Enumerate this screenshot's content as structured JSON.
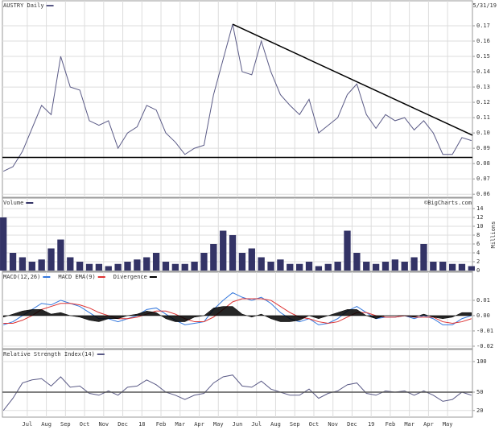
{
  "chart_data": [
    {
      "type": "line",
      "subtitle": "5/31/19",
      "x": [
        -0.25,
        0.25,
        0.75,
        1.25,
        1.75,
        2.25,
        2.75,
        3.25,
        3.75,
        4.25,
        4.75,
        5.25,
        5.75,
        6.25,
        6.75,
        7.25,
        7.75,
        8.25,
        8.75,
        9.25,
        9.75,
        10.25,
        10.75,
        11.25,
        11.75,
        12.25,
        12.75,
        13.25,
        13.75,
        14.25,
        14.75,
        15.25,
        15.75,
        16.25,
        16.75,
        17.25,
        17.75,
        18.25,
        18.75,
        19.25,
        19.75,
        20.25,
        20.75,
        21.25,
        21.75,
        22.25,
        22.75,
        23.25,
        23.75,
        24.25
      ],
      "series": [
        {
          "name": "AUSTRY Daily",
          "color": "#5a5a86",
          "values": [
            0.075,
            0.078,
            0.088,
            0.103,
            0.118,
            0.112,
            0.15,
            0.13,
            0.128,
            0.108,
            0.105,
            0.108,
            0.09,
            0.1,
            0.104,
            0.118,
            0.115,
            0.1,
            0.094,
            0.086,
            0.09,
            0.092,
            0.125,
            0.148,
            0.171,
            0.14,
            0.138,
            0.16,
            0.14,
            0.125,
            0.118,
            0.112,
            0.122,
            0.1,
            0.105,
            0.11,
            0.125,
            0.132,
            0.112,
            0.103,
            0.112,
            0.108,
            0.11,
            0.102,
            0.108,
            0.1,
            0.086,
            0.086,
            0.097,
            0.095
          ]
        }
      ],
      "reference_lines": [
        {
          "x": [
            11.75,
            24.3
          ],
          "values": [
            0.171,
            0.0985
          ],
          "color": "#000000"
        },
        {
          "x": [
            -0.3,
            24.3
          ],
          "values": [
            0.084,
            0.084
          ],
          "color": "#000000"
        }
      ],
      "xlim": [
        -0.3,
        24.3
      ],
      "ylim": [
        0.058,
        0.1863
      ],
      "yticks": [
        0.06,
        0.07,
        0.08,
        0.09,
        {
          "value": 0.1,
          "label": "0.10"
        },
        0.11,
        0.12,
        0.13,
        0.14,
        0.15,
        0.16,
        0.17
      ],
      "grid": true
    },
    {
      "type": "bar",
      "credit": "©BigCharts.com",
      "ylabel": "Millions",
      "x": [
        -0.25,
        0.25,
        0.75,
        1.25,
        1.75,
        2.25,
        2.75,
        3.25,
        3.75,
        4.25,
        4.75,
        5.25,
        5.75,
        6.25,
        6.75,
        7.25,
        7.75,
        8.25,
        8.75,
        9.25,
        9.75,
        10.25,
        10.75,
        11.25,
        11.75,
        12.25,
        12.75,
        13.25,
        13.75,
        14.25,
        14.75,
        15.25,
        15.75,
        16.25,
        16.75,
        17.25,
        17.75,
        18.25,
        18.75,
        19.25,
        19.75,
        20.25,
        20.75,
        21.25,
        21.75,
        22.25,
        22.75,
        23.25,
        23.75,
        24.25
      ],
      "series": [
        {
          "name": "Volume",
          "color": "#333366",
          "values": [
            12,
            4,
            3,
            2,
            2.5,
            5,
            7,
            3,
            2,
            1.5,
            1.5,
            1,
            1.5,
            2,
            2.5,
            3,
            4,
            2,
            1.5,
            1.5,
            2,
            4,
            6,
            9,
            8,
            4,
            5,
            3,
            2,
            2.5,
            1.5,
            1.5,
            2,
            1,
            1.5,
            2,
            9,
            4,
            2,
            1.5,
            2,
            2.5,
            2,
            3,
            6,
            2,
            2,
            1.5,
            1.5,
            1
          ]
        }
      ],
      "xlim": [
        -0.3,
        24.3
      ],
      "ylim": [
        -0.18,
        16.36
      ],
      "yticks": [
        0,
        2,
        4,
        6,
        8,
        10,
        12,
        14
      ],
      "grid": true
    },
    {
      "type": "line",
      "x": [
        -0.25,
        0.25,
        0.75,
        1.25,
        1.75,
        2.25,
        2.75,
        3.25,
        3.75,
        4.25,
        4.75,
        5.25,
        5.75,
        6.25,
        6.75,
        7.25,
        7.75,
        8.25,
        8.75,
        9.25,
        9.75,
        10.25,
        10.75,
        11.25,
        11.75,
        12.25,
        12.75,
        13.25,
        13.75,
        14.25,
        14.75,
        15.25,
        15.75,
        16.25,
        16.75,
        17.25,
        17.75,
        18.25,
        18.75,
        19.25,
        19.75,
        20.25,
        20.75,
        21.25,
        21.75,
        22.25,
        22.75,
        23.25,
        23.75,
        24.25
      ],
      "series": [
        {
          "name": "MACD(12,26)",
          "color": "#3377dd",
          "values": [
            -0.006,
            -0.004,
            0.0,
            0.004,
            0.008,
            0.007,
            0.01,
            0.008,
            0.006,
            0.002,
            -0.002,
            -0.002,
            -0.004,
            -0.002,
            0.0,
            0.004,
            0.005,
            0.001,
            -0.003,
            -0.006,
            -0.005,
            -0.004,
            0.004,
            0.01,
            0.015,
            0.012,
            0.01,
            0.012,
            0.008,
            0.002,
            -0.002,
            -0.004,
            -0.002,
            -0.006,
            -0.005,
            -0.002,
            0.003,
            0.006,
            0.002,
            -0.002,
            -0.001,
            -0.001,
            0.0,
            -0.002,
            0.0,
            -0.002,
            -0.006,
            -0.006,
            -0.002,
            0.0
          ]
        },
        {
          "name": "MACD EMA(9)",
          "color": "#dd3333",
          "values": [
            -0.005,
            -0.005,
            -0.003,
            0.0,
            0.004,
            0.006,
            0.008,
            0.008,
            0.007,
            0.005,
            0.002,
            0.0,
            -0.002,
            -0.002,
            -0.001,
            0.001,
            0.003,
            0.003,
            0.001,
            -0.002,
            -0.004,
            -0.004,
            -0.001,
            0.004,
            0.009,
            0.011,
            0.011,
            0.011,
            0.01,
            0.006,
            0.002,
            -0.001,
            -0.002,
            -0.004,
            -0.005,
            -0.004,
            -0.001,
            0.002,
            0.002,
            0.0,
            -0.001,
            -0.001,
            0.0,
            -0.001,
            -0.001,
            -0.001,
            -0.004,
            -0.005,
            -0.004,
            -0.002
          ]
        },
        {
          "name": "Divergence",
          "color": "#000000",
          "fill": true,
          "values": [
            -0.001,
            0.001,
            0.003,
            0.004,
            0.004,
            0.001,
            0.002,
            0.0,
            -0.001,
            -0.003,
            -0.004,
            -0.002,
            -0.002,
            0.0,
            0.001,
            0.003,
            0.002,
            -0.002,
            -0.004,
            -0.004,
            -0.001,
            0.0,
            0.005,
            0.006,
            0.006,
            0.001,
            -0.001,
            0.001,
            -0.002,
            -0.004,
            -0.004,
            -0.003,
            0.0,
            -0.002,
            0.0,
            0.002,
            0.004,
            0.004,
            0.0,
            -0.002,
            0.0,
            0.0,
            0.0,
            -0.001,
            0.001,
            -0.001,
            -0.002,
            -0.001,
            0.002,
            0.002
          ]
        }
      ],
      "xlim": [
        -0.3,
        24.3
      ],
      "ylim": [
        -0.0216,
        0.0284
      ],
      "yticks": [
        0.01,
        {
          "value": 0,
          "label": "0.00"
        },
        -0.01,
        -0.02
      ],
      "grid": true
    },
    {
      "type": "line",
      "x": [
        -0.25,
        0.25,
        0.75,
        1.25,
        1.75,
        2.25,
        2.75,
        3.25,
        3.75,
        4.25,
        4.75,
        5.25,
        5.75,
        6.25,
        6.75,
        7.25,
        7.75,
        8.25,
        8.75,
        9.25,
        9.75,
        10.25,
        10.75,
        11.25,
        11.75,
        12.25,
        12.75,
        13.25,
        13.75,
        14.25,
        14.75,
        15.25,
        15.75,
        16.25,
        16.75,
        17.25,
        17.75,
        18.25,
        18.75,
        19.25,
        19.75,
        20.25,
        20.75,
        21.25,
        21.75,
        22.25,
        22.75,
        23.25,
        23.75,
        24.25
      ],
      "series": [
        {
          "name": "Relative Strength Index(14)",
          "color": "#5a5a86",
          "values": [
            20,
            40,
            65,
            70,
            72,
            60,
            75,
            58,
            60,
            48,
            45,
            52,
            45,
            58,
            60,
            70,
            62,
            50,
            45,
            38,
            45,
            48,
            65,
            75,
            78,
            60,
            58,
            68,
            55,
            50,
            45,
            45,
            55,
            40,
            48,
            52,
            62,
            65,
            48,
            45,
            52,
            50,
            52,
            45,
            52,
            45,
            35,
            38,
            50,
            45
          ]
        }
      ],
      "reference_lines": [
        {
          "x": [
            -0.3,
            24.3
          ],
          "values": [
            50,
            50
          ],
          "color": "#555555"
        }
      ],
      "xlim": [
        -0.3,
        24.3
      ],
      "ylim": [
        9.2,
        119.7
      ],
      "yticks": [
        100,
        50,
        20
      ],
      "xticks": [
        {
          "value": 1,
          "label": "Jul"
        },
        {
          "value": 2,
          "label": "Aug"
        },
        {
          "value": 3,
          "label": "Sep"
        },
        {
          "value": 4,
          "label": "Oct"
        },
        {
          "value": 5,
          "label": "Nov"
        },
        {
          "value": 6,
          "label": "Dec"
        },
        {
          "value": 7,
          "label": "18"
        },
        {
          "value": 8,
          "label": "Feb"
        },
        {
          "value": 9,
          "label": "Mar"
        },
        {
          "value": 10,
          "label": "Apr"
        },
        {
          "value": 11,
          "label": "May"
        },
        {
          "value": 12,
          "label": "Jun"
        },
        {
          "value": 13,
          "label": "Jul"
        },
        {
          "value": 14,
          "label": "Aug"
        },
        {
          "value": 15,
          "label": "Sep"
        },
        {
          "value": 16,
          "label": "Oct"
        },
        {
          "value": 17,
          "label": "Nov"
        },
        {
          "value": 18,
          "label": "Dec"
        },
        {
          "value": 19,
          "label": "19"
        },
        {
          "value": 20,
          "label": "Feb"
        },
        {
          "value": 21,
          "label": "Mar"
        },
        {
          "value": 22,
          "label": "Apr"
        },
        {
          "value": 23,
          "label": "May"
        }
      ],
      "grid": true
    }
  ]
}
